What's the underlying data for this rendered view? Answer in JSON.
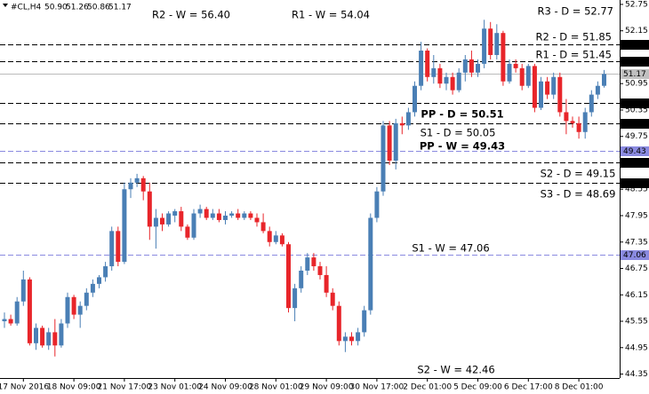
{
  "chart_data": {
    "type": "candlestick",
    "header": {
      "symbol": "#CL,H4",
      "quote": [
        "50.90",
        "51.26",
        "50.86",
        "51.17"
      ]
    },
    "up_color": "#4a7fb5",
    "down_color": "#e8252a",
    "ylim": [
      44.26,
      52.85
    ],
    "yticks": [
      52.75,
      52.15,
      50.95,
      50.35,
      49.75,
      48.55,
      47.95,
      47.35,
      46.75,
      46.15,
      45.55,
      44.95,
      44.35
    ],
    "categories": [
      null,
      null,
      null,
      "17 Nov 2016",
      null,
      null,
      null,
      null,
      null,
      null,
      null,
      "18 Nov 09:00",
      null,
      null,
      null,
      null,
      null,
      null,
      null,
      "21 Nov 17:00",
      null,
      null,
      null,
      null,
      null,
      null,
      null,
      "23 Nov 01:00",
      null,
      null,
      null,
      null,
      null,
      null,
      null,
      "24 Nov 09:00",
      null,
      null,
      null,
      null,
      null,
      null,
      null,
      "28 Nov 01:00",
      null,
      null,
      null,
      null,
      null,
      null,
      null,
      "29 Nov 09:00",
      null,
      null,
      null,
      null,
      null,
      null,
      null,
      "30 Nov 17:00",
      null,
      null,
      null,
      null,
      null,
      null,
      null,
      "2 Dec 01:00",
      null,
      null,
      null,
      null,
      null,
      null,
      null,
      "5 Dec 09:00",
      null,
      null,
      null,
      null,
      null,
      null,
      null,
      "6 Dec 17:00",
      null,
      null,
      null,
      null,
      null,
      null,
      null,
      "8 Dec 01:00",
      null,
      null,
      null,
      null
    ],
    "open": [
      45.55,
      45.6,
      45.5,
      46.0,
      46.5,
      45.05,
      45.4,
      45.0,
      45.3,
      45.0,
      45.5,
      46.1,
      45.7,
      45.9,
      46.2,
      46.4,
      46.55,
      46.8,
      47.6,
      46.9,
      48.55,
      48.7,
      48.8,
      48.5,
      47.7,
      47.9,
      47.75,
      47.95,
      48.05,
      47.7,
      47.45,
      48.0,
      48.1,
      47.9,
      48.0,
      47.85,
      47.95,
      48.0,
      47.9,
      48.0,
      47.9,
      47.8,
      47.6,
      47.35,
      47.5,
      47.3,
      45.85,
      46.3,
      46.7,
      47.0,
      46.8,
      46.6,
      46.2,
      45.9,
      45.1,
      45.2,
      45.1,
      45.3,
      45.8,
      47.9,
      48.5,
      50.0,
      49.2,
      50.05,
      50.0,
      50.3,
      50.9,
      51.7,
      51.1,
      51.3,
      50.95,
      51.1,
      50.8,
      51.2,
      51.5,
      51.2,
      51.4,
      52.2,
      51.6,
      52.1,
      51.0,
      51.4,
      51.3,
      50.9,
      51.35,
      50.4,
      51.0,
      50.7,
      51.1,
      50.3,
      50.1,
      50.05,
      49.85,
      50.3,
      50.7,
      50.9
    ],
    "high": [
      45.75,
      45.7,
      46.1,
      46.7,
      46.55,
      45.5,
      45.45,
      45.4,
      45.6,
      45.6,
      46.2,
      46.15,
      46.0,
      46.3,
      46.5,
      46.6,
      46.9,
      47.7,
      47.7,
      48.7,
      48.8,
      48.9,
      48.85,
      48.7,
      48.1,
      48.0,
      48.05,
      48.1,
      48.15,
      47.75,
      48.1,
      48.2,
      48.15,
      48.1,
      48.1,
      48.05,
      48.05,
      48.1,
      48.05,
      48.05,
      48.0,
      48.0,
      47.7,
      47.6,
      47.55,
      47.35,
      46.4,
      46.8,
      47.1,
      47.1,
      46.9,
      46.8,
      46.3,
      46.0,
      45.3,
      45.3,
      45.4,
      45.9,
      48.0,
      48.6,
      50.1,
      50.1,
      50.15,
      50.2,
      50.4,
      51.0,
      51.9,
      51.75,
      51.6,
      51.4,
      51.2,
      51.2,
      51.3,
      51.6,
      51.7,
      51.5,
      52.4,
      52.35,
      52.3,
      52.15,
      51.5,
      51.5,
      51.4,
      51.4,
      51.4,
      51.1,
      51.1,
      51.2,
      51.2,
      50.6,
      50.2,
      50.2,
      50.4,
      50.8,
      51.0,
      51.26
    ],
    "low": [
      45.4,
      45.45,
      45.45,
      45.9,
      45.0,
      44.9,
      44.95,
      44.9,
      44.75,
      44.95,
      45.4,
      45.6,
      45.4,
      45.8,
      46.1,
      46.3,
      46.45,
      46.7,
      46.8,
      46.85,
      48.35,
      48.6,
      48.3,
      47.4,
      47.2,
      47.6,
      47.7,
      47.8,
      47.6,
      47.4,
      47.4,
      47.9,
      47.85,
      47.85,
      47.8,
      47.75,
      47.9,
      47.85,
      47.85,
      47.85,
      47.7,
      47.55,
      47.25,
      47.3,
      47.25,
      45.75,
      45.55,
      46.2,
      46.6,
      46.7,
      46.5,
      46.1,
      45.8,
      45.0,
      44.85,
      45.0,
      45.0,
      45.2,
      45.7,
      47.8,
      48.4,
      49.1,
      49.0,
      49.8,
      49.9,
      50.2,
      50.8,
      51.0,
      50.95,
      50.85,
      50.8,
      50.7,
      50.75,
      51.0,
      51.1,
      51.1,
      51.3,
      51.5,
      51.5,
      50.9,
      50.95,
      51.2,
      50.8,
      50.85,
      50.3,
      50.35,
      50.6,
      50.6,
      50.2,
      49.8,
      49.95,
      49.7,
      49.7,
      50.2,
      50.6,
      50.86
    ],
    "close": [
      45.6,
      45.5,
      46.0,
      46.5,
      45.05,
      45.4,
      45.0,
      45.3,
      45.0,
      45.5,
      46.1,
      45.7,
      45.9,
      46.2,
      46.4,
      46.55,
      46.8,
      47.6,
      46.9,
      48.55,
      48.7,
      48.8,
      48.5,
      47.7,
      47.9,
      47.75,
      48.0,
      48.05,
      47.7,
      47.45,
      48.0,
      48.1,
      47.9,
      48.0,
      47.85,
      47.95,
      48.0,
      47.9,
      48.0,
      47.9,
      47.8,
      47.6,
      47.35,
      47.5,
      47.3,
      45.85,
      46.3,
      46.7,
      47.0,
      46.8,
      46.6,
      46.2,
      45.9,
      45.1,
      45.2,
      45.1,
      45.3,
      45.8,
      47.9,
      48.5,
      50.0,
      49.2,
      50.05,
      50.0,
      50.3,
      50.9,
      51.7,
      51.1,
      51.3,
      50.95,
      51.1,
      50.8,
      51.2,
      51.5,
      51.2,
      51.4,
      52.2,
      51.6,
      52.1,
      51.0,
      51.4,
      51.3,
      50.9,
      51.35,
      50.4,
      51.0,
      50.7,
      51.1,
      50.3,
      50.1,
      50.05,
      49.85,
      50.3,
      50.7,
      50.9,
      51.17
    ],
    "levels": [
      {
        "label": "R2 - W = 56.40",
        "value": 56.4,
        "color": "#8a8ae0",
        "line": false
      },
      {
        "label": "R1 - W = 54.04",
        "value": 54.04,
        "color": "#8a8ae0",
        "line": false
      },
      {
        "label": "R3 - D = 52.77",
        "value": 52.77,
        "color": "#e8312b",
        "line": false
      },
      {
        "label": "R2 - D = 51.85",
        "value": 51.85,
        "color": "#e8312b",
        "line": true,
        "line_color": "#000000"
      },
      {
        "label": "R1 - D = 51.45",
        "value": 51.45,
        "color": "#e8312b",
        "line": true,
        "line_color": "#000000"
      },
      {
        "label": "PP - D = 50.51",
        "value": 50.51,
        "color": "#3a5bd9",
        "line": true,
        "line_color": "#000000",
        "bold": true
      },
      {
        "label": "S1 - D = 50.05",
        "value": 50.05,
        "color": "#e8312b",
        "line": true,
        "line_color": "#000000"
      },
      {
        "label": "PP - W = 49.43",
        "value": 49.43,
        "color": "#6a5acd",
        "line": true,
        "line_color": "#8a8ae0",
        "bold": true
      },
      {
        "label": "S2 - D = 49.15",
        "value": 49.15,
        "color": "#e8312b",
        "line": true,
        "line_color": "#000000"
      },
      {
        "label": "S3 - D = 48.69",
        "value": 48.69,
        "color": "#e8312b",
        "line": true,
        "line_color": "#000000"
      },
      {
        "label": "S1 - W = 47.06",
        "value": 47.06,
        "color": "#8a8ae0",
        "line": true,
        "line_color": "#8a8ae0"
      },
      {
        "label": "S2 - W = 42.46",
        "value": 42.46,
        "color": "#8a8ae0",
        "line": false
      }
    ]
  }
}
